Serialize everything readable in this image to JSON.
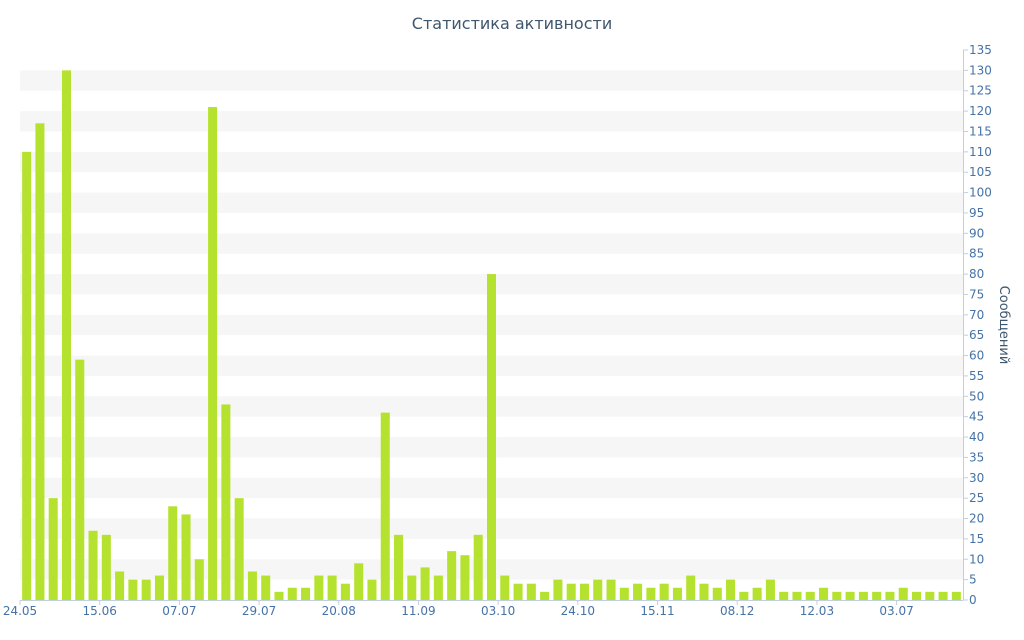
{
  "chart_data": {
    "type": "bar",
    "title": "Статистика активности",
    "ylabel": "Сообщений",
    "xlabel": "",
    "ylim": [
      0,
      135
    ],
    "y_ticks": [
      0,
      5,
      10,
      15,
      20,
      25,
      30,
      35,
      40,
      45,
      50,
      55,
      60,
      65,
      70,
      75,
      80,
      85,
      90,
      95,
      100,
      105,
      110,
      115,
      120,
      125,
      130,
      135
    ],
    "x_tick_labels": [
      {
        "index": 0,
        "label": "24.05"
      },
      {
        "index": 6,
        "label": "15.06"
      },
      {
        "index": 12,
        "label": "07.07"
      },
      {
        "index": 18,
        "label": "29.07"
      },
      {
        "index": 24,
        "label": "20.08"
      },
      {
        "index": 30,
        "label": "11.09"
      },
      {
        "index": 36,
        "label": "03.10"
      },
      {
        "index": 42,
        "label": "24.10"
      },
      {
        "index": 48,
        "label": "15.11"
      },
      {
        "index": 54,
        "label": "08.12"
      },
      {
        "index": 60,
        "label": "12.03"
      },
      {
        "index": 66,
        "label": "03.07"
      }
    ],
    "values": [
      110,
      117,
      25,
      130,
      59,
      17,
      16,
      7,
      5,
      5,
      6,
      23,
      21,
      10,
      121,
      48,
      25,
      7,
      6,
      2,
      3,
      3,
      6,
      6,
      4,
      9,
      5,
      46,
      16,
      6,
      8,
      6,
      12,
      11,
      16,
      80,
      6,
      4,
      4,
      2,
      5,
      4,
      4,
      5,
      5,
      3,
      4,
      3,
      4,
      3,
      6,
      4,
      3,
      5,
      2,
      3,
      5,
      2,
      2,
      2,
      3,
      2,
      2,
      2,
      2,
      2,
      3,
      2,
      2,
      2,
      2
    ],
    "bar_color": "#b5e22e",
    "band_color": "#f6f6f6",
    "axis_color": "#4572a7",
    "label_color": "#3e576f",
    "grid": "alternate horizontal bands",
    "y_axis_side": "right"
  }
}
